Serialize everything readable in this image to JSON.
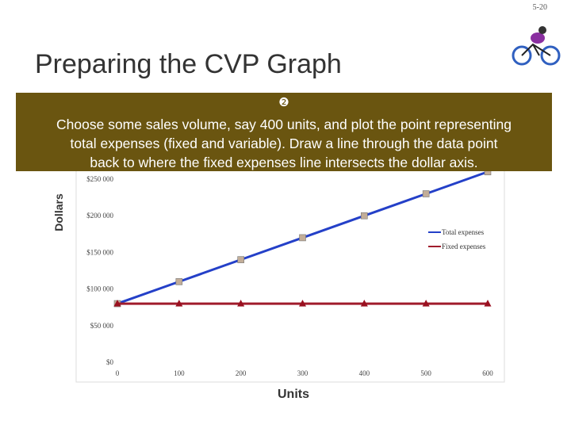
{
  "page_number": "5-20",
  "title": "Preparing the CVP Graph",
  "callout": {
    "number": "❷",
    "lines": [
      "Choose some sales volume, say 400 units, and plot the point representing",
      "total expenses (fixed and variable). Draw a line through the data point",
      "back to where the fixed expenses line intersects the dollar axis."
    ]
  },
  "chart_data": {
    "type": "line",
    "x_label": "Units",
    "y_label": "Dollars",
    "x": [
      0,
      100,
      200,
      300,
      400,
      500,
      600
    ],
    "series": [
      {
        "name": "Total expenses",
        "color": "#2440c8",
        "marker_color": "#c2ad98",
        "marker": "square",
        "values": [
          80000,
          110000,
          140000,
          170000,
          200000,
          230000,
          260000
        ]
      },
      {
        "name": "Fixed expenses",
        "color": "#a01c2c",
        "marker_color": "#9a1020",
        "marker": "triangle",
        "values": [
          80000,
          80000,
          80000,
          80000,
          80000,
          80000,
          80000
        ]
      }
    ],
    "xlim": [
      0,
      600
    ],
    "ylim": [
      0,
      270000
    ],
    "xticks": [
      0,
      100,
      200,
      300,
      400,
      500,
      600
    ],
    "yticks": [
      {
        "value": 0,
        "label": "$0"
      },
      {
        "value": 50000,
        "label": "$50 000"
      },
      {
        "value": 100000,
        "label": "$100 000"
      },
      {
        "value": 150000,
        "label": "$150 000"
      },
      {
        "value": 200000,
        "label": "$200 000"
      },
      {
        "value": 250000,
        "label": "$250 000"
      }
    ],
    "legend": "right"
  }
}
